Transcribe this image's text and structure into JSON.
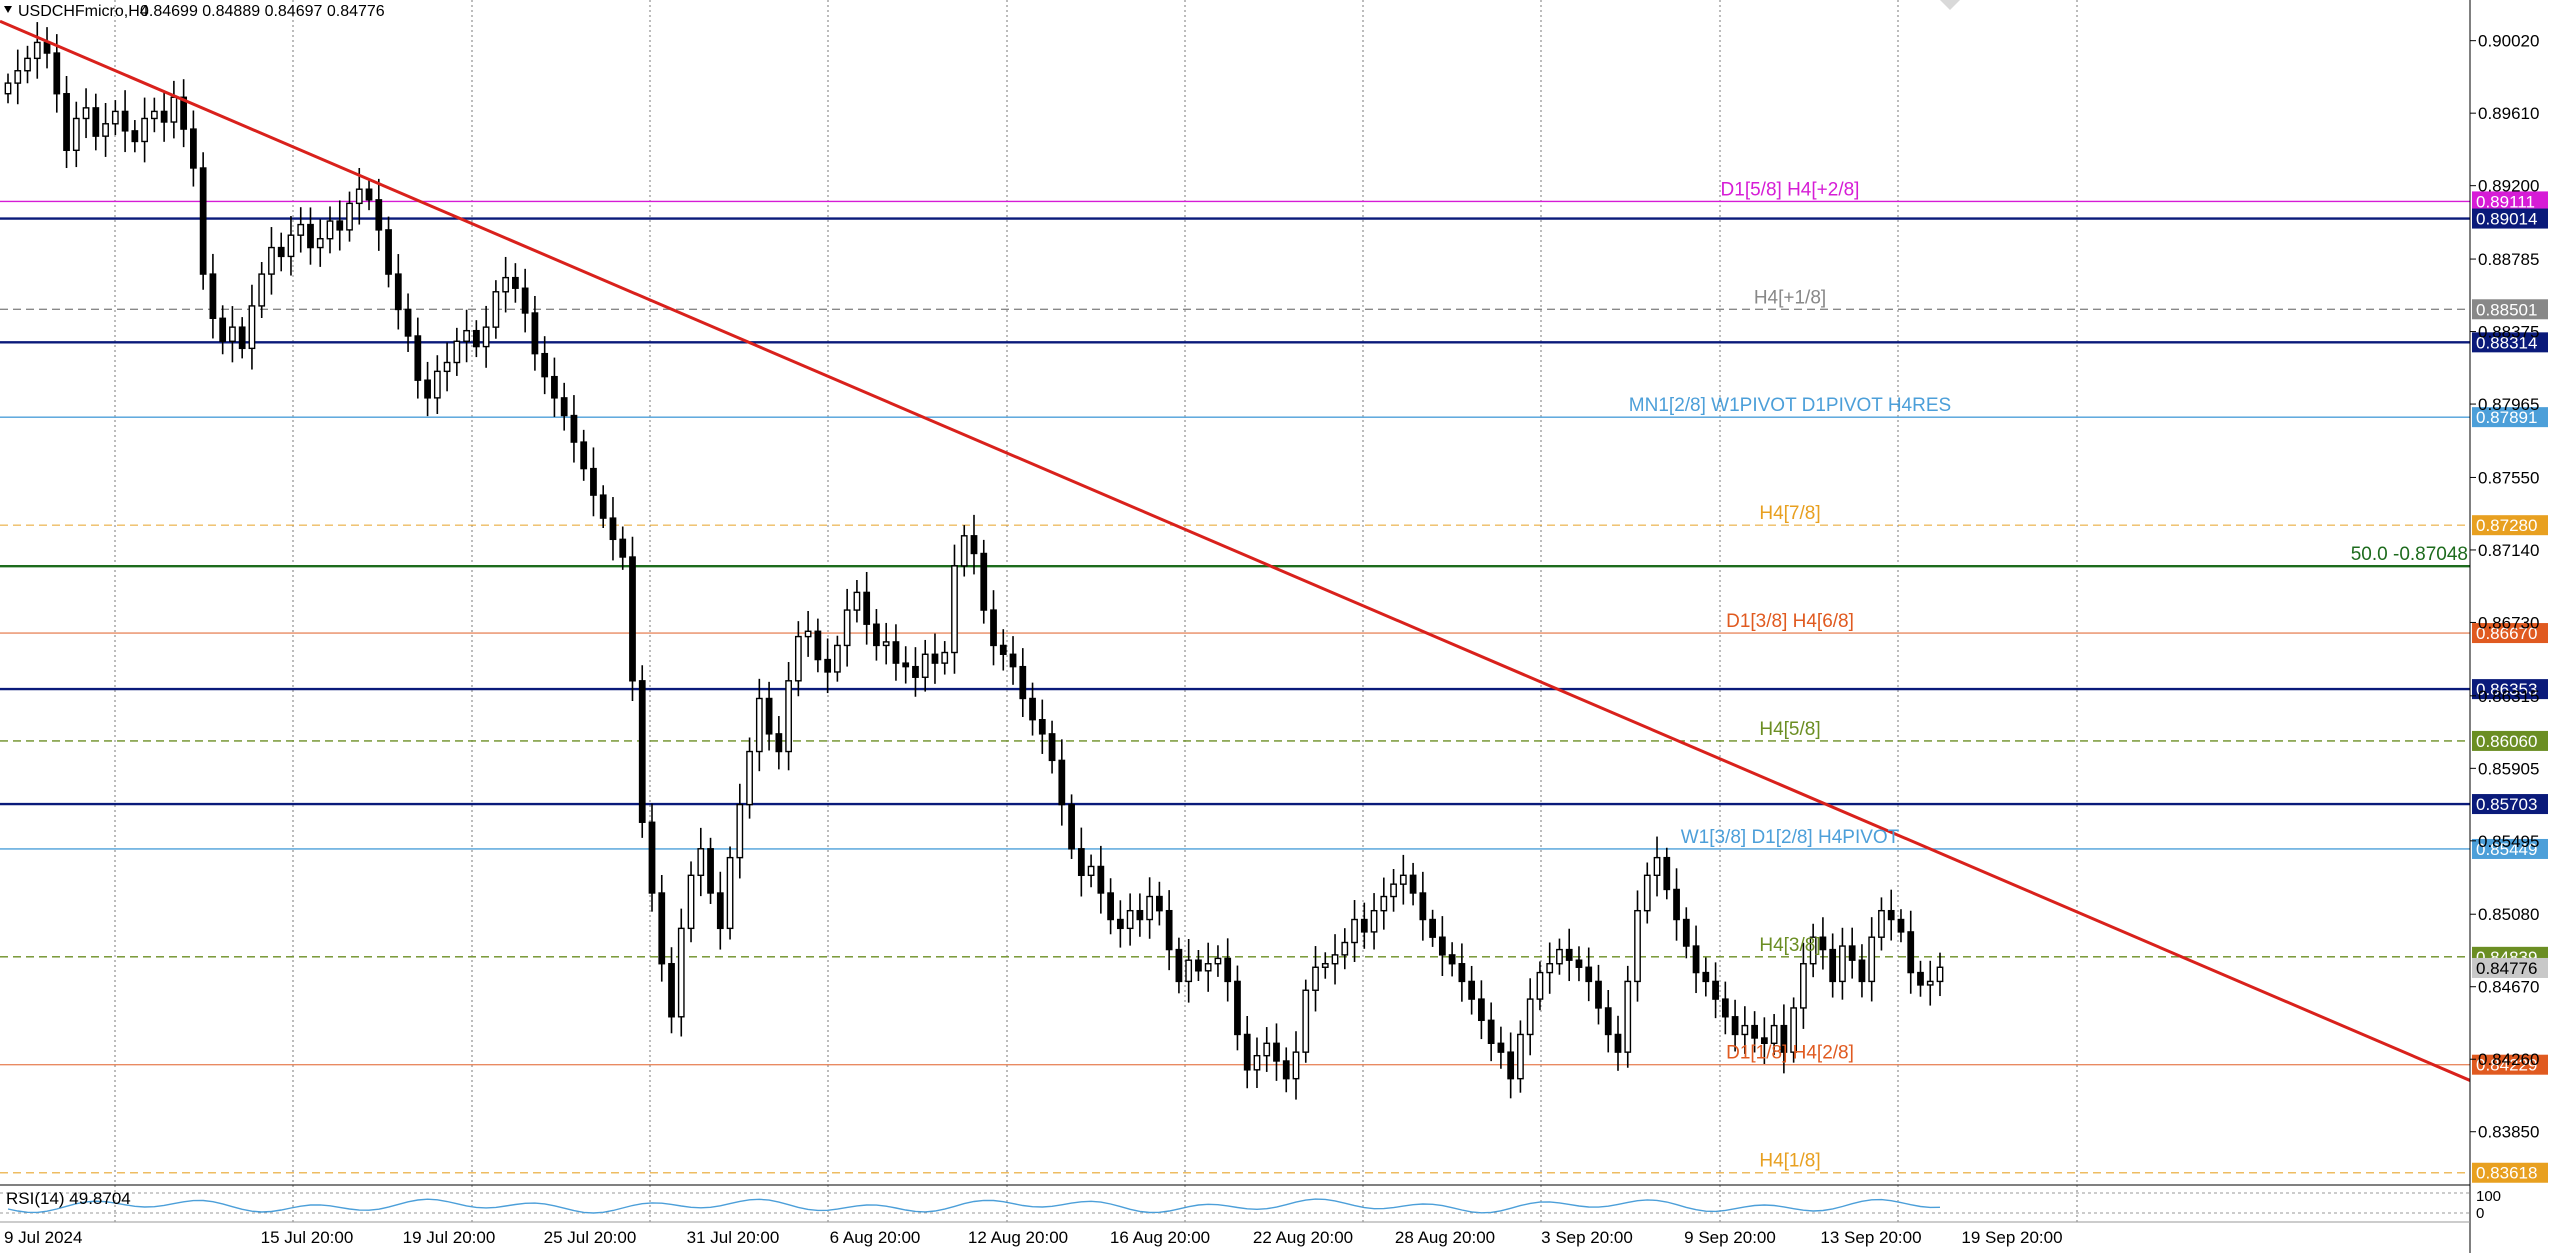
{
  "header": {
    "symbol_label": "USDCHFmicro,H4",
    "ohlc_label": "0.84699 0.84889 0.84697 0.84776"
  },
  "rsi_label": "RSI(14) 49.8704",
  "rsi_scale": [
    "100",
    "0"
  ],
  "colors": {
    "background": "#ffffff",
    "candle": "#000000",
    "trendline": "#d9211c",
    "navy": "#0a1a7a",
    "fib": "#1d6b1d",
    "lightblue": "#4c9fd9",
    "magenta": "#d61cd6",
    "gray": "#888888",
    "orange": "#e8a020",
    "red_orange": "#e05a20",
    "olive": "#6b8e23"
  },
  "chart_data": {
    "type": "candlestick",
    "symbol": "USDCHFmicro",
    "timeframe": "H4",
    "ylim": [
      0.8356,
      0.9025
    ],
    "price_ticks": [
      "0.90020",
      "0.89610",
      "0.89200",
      "0.88785",
      "0.88375",
      "0.87965",
      "0.87550",
      "0.87140",
      "0.86730",
      "0.86315",
      "0.85905",
      "0.85495",
      "0.85080",
      "0.84670",
      "0.84260",
      "0.83850"
    ],
    "x_labels": [
      "9 Jul 2024",
      "15 Jul 20:00",
      "19 Jul 20:00",
      "25 Jul 20:00",
      "31 Jul 20:00",
      "6 Aug 20:00",
      "12 Aug 20:00",
      "16 Aug 20:00",
      "22 Aug 20:00",
      "28 Aug 20:00",
      "3 Sep 20:00",
      "9 Sep 20:00",
      "13 Sep 20:00",
      "19 Sep 20:00"
    ],
    "levels": [
      {
        "price": 0.89111,
        "badge": "0.89111",
        "color": "#d61cd6",
        "style": "solid",
        "label": "D1[5/8] H4[+2/8]"
      },
      {
        "price": 0.89014,
        "badge": "0.89014",
        "color": "#0a1a7a",
        "style": "solid",
        "label": ""
      },
      {
        "price": 0.88501,
        "badge": "0.88501",
        "color": "#888888",
        "style": "dashed",
        "label": "H4[+1/8]"
      },
      {
        "price": 0.88314,
        "badge": "0.88314",
        "color": "#0a1a7a",
        "style": "solid",
        "label": ""
      },
      {
        "price": 0.87891,
        "badge": "0.87891",
        "color": "#4c9fd9",
        "style": "solid",
        "label": "MN1[2/8] W1PIVOT D1PIVOT H4RES"
      },
      {
        "price": 0.8728,
        "badge": "0.87280",
        "color": "#e8a020",
        "style": "dashed",
        "label": "H4[7/8]"
      },
      {
        "price": 0.87048,
        "badge": "",
        "color": "#1d6b1d",
        "style": "solid",
        "label": "50.0 -0.87048"
      },
      {
        "price": 0.8667,
        "badge": "0.86670",
        "color": "#e05a20",
        "style": "solid",
        "label": "D1[3/8] H4[6/8]"
      },
      {
        "price": 0.86353,
        "badge": "0.86353",
        "color": "#0a1a7a",
        "style": "solid",
        "label": ""
      },
      {
        "price": 0.8606,
        "badge": "0.86060",
        "color": "#6b8e23",
        "style": "dashed",
        "label": "H4[5/8]"
      },
      {
        "price": 0.85703,
        "badge": "0.85703",
        "color": "#0a1a7a",
        "style": "solid",
        "label": ""
      },
      {
        "price": 0.85449,
        "badge": "0.85449",
        "color": "#4c9fd9",
        "style": "solid",
        "label": "W1[3/8] D1[2/8] H4PIVOT"
      },
      {
        "price": 0.84839,
        "badge": "0.84839",
        "color": "#6b8e23",
        "style": "dashed",
        "label": "H4[3/8]"
      },
      {
        "price": 0.84229,
        "badge": "0.84229",
        "color": "#e05a20",
        "style": "solid",
        "label": "D1[1/8] H4[2/8]"
      },
      {
        "price": 0.83618,
        "badge": "0.83618",
        "color": "#e8a020",
        "style": "dashed",
        "label": "H4[1/8]"
      }
    ],
    "current_price": {
      "price": 0.84776,
      "badge": "0.84776"
    },
    "trendline": {
      "start_price": 0.9013,
      "end_price": 0.8414
    },
    "series": [
      {
        "values": [
          0.8978,
          0.8985,
          0.8992,
          0.9001,
          0.8995,
          0.8972,
          0.894,
          0.8958,
          0.8964,
          0.8948,
          0.8955,
          0.8962,
          0.8951,
          0.8945,
          0.8958,
          0.8962,
          0.8956,
          0.897,
          0.8952,
          0.893,
          0.887,
          0.8845,
          0.8832,
          0.884,
          0.8828,
          0.8852,
          0.887,
          0.8885,
          0.888,
          0.8892,
          0.8898,
          0.8885,
          0.889,
          0.89,
          0.8895,
          0.891,
          0.8918,
          0.8912,
          0.8895,
          0.887,
          0.885,
          0.8835,
          0.881,
          0.88,
          0.8815,
          0.882,
          0.8832,
          0.8838,
          0.8829,
          0.884,
          0.886,
          0.8868,
          0.8862,
          0.8848,
          0.8825,
          0.8812,
          0.88,
          0.879,
          0.8775,
          0.876,
          0.8745,
          0.8732,
          0.872,
          0.871,
          0.864,
          0.856,
          0.852,
          0.848,
          0.845,
          0.85,
          0.853,
          0.8545,
          0.852,
          0.85,
          0.854,
          0.857,
          0.86,
          0.863,
          0.861,
          0.86,
          0.864,
          0.8665,
          0.8668,
          0.8652,
          0.8645,
          0.866,
          0.868,
          0.869,
          0.8672,
          0.866,
          0.8662,
          0.865,
          0.8648,
          0.8642,
          0.8655,
          0.865,
          0.8656,
          0.8705,
          0.8722,
          0.8712,
          0.868,
          0.866,
          0.8655,
          0.8648,
          0.863,
          0.8618,
          0.861,
          0.8595,
          0.857,
          0.8545,
          0.853,
          0.8535,
          0.852,
          0.8505,
          0.85,
          0.851,
          0.8505,
          0.8518,
          0.851,
          0.8488,
          0.847,
          0.8482,
          0.8476,
          0.848,
          0.8483,
          0.847,
          0.844,
          0.842,
          0.8428,
          0.8435,
          0.8425,
          0.8415,
          0.843,
          0.8465,
          0.8478,
          0.848,
          0.8485,
          0.8492,
          0.8505,
          0.8498,
          0.851,
          0.8518,
          0.8525,
          0.853,
          0.852,
          0.8505,
          0.8495,
          0.8485,
          0.848,
          0.847,
          0.846,
          0.8448,
          0.8435,
          0.843,
          0.8415,
          0.844,
          0.846,
          0.8475,
          0.848,
          0.8488,
          0.8482,
          0.8478,
          0.847,
          0.8455,
          0.844,
          0.843,
          0.847,
          0.851,
          0.853,
          0.854,
          0.8522,
          0.8505,
          0.849,
          0.8475,
          0.847,
          0.846,
          0.845,
          0.844,
          0.8445,
          0.8438,
          0.8435,
          0.8445,
          0.843,
          0.8455,
          0.848,
          0.8495,
          0.8488,
          0.847,
          0.849,
          0.8482,
          0.847,
          0.8495,
          0.851,
          0.8505,
          0.8498,
          0.8475,
          0.8468,
          0.847,
          0.8478
        ]
      }
    ]
  }
}
